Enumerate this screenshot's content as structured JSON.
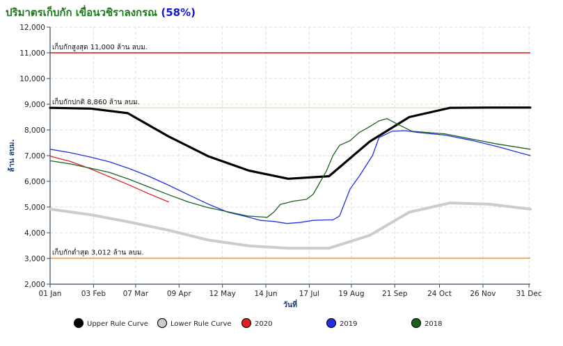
{
  "header": {
    "title_main": "ปริมาตรเก็บกัก เขื่อนวชิราลงกรณ",
    "title_pct": "(58%)"
  },
  "chart_data": {
    "type": "line",
    "xlabel": "วันที่",
    "ylabel": "ล้าน ลบม.",
    "ylim": [
      2000,
      12000
    ],
    "xlim": [
      0,
      365
    ],
    "y_ticks": [
      2000,
      3000,
      4000,
      5000,
      6000,
      7000,
      8000,
      9000,
      10000,
      11000,
      12000
    ],
    "y_tick_labels": [
      "2,000",
      "3,000",
      "4,000",
      "5,000",
      "6,000",
      "7,000",
      "8,000",
      "9,000",
      "10,000",
      "11,000",
      "12,000"
    ],
    "x_ticks": [
      {
        "day": 0,
        "label": "01 Jan"
      },
      {
        "day": 33,
        "label": "03 Feb"
      },
      {
        "day": 65,
        "label": "07 Mar"
      },
      {
        "day": 98,
        "label": "09 Apr"
      },
      {
        "day": 131,
        "label": "12 May"
      },
      {
        "day": 164,
        "label": "14 Jun"
      },
      {
        "day": 197,
        "label": "17 Jul"
      },
      {
        "day": 229,
        "label": "19 Aug"
      },
      {
        "day": 262,
        "label": "21 Sep"
      },
      {
        "day": 296,
        "label": "24 Oct"
      },
      {
        "day": 329,
        "label": "26 Nov"
      },
      {
        "day": 364,
        "label": "31 Dec"
      }
    ],
    "grid": true,
    "legend_position": "bottom",
    "reference_lines": [
      {
        "label": "เก็บกักสูงสุด 11,000 ล้าน ลบม.",
        "value": 11000,
        "color": "#e01010"
      },
      {
        "label": "เก็บกักปกติ 8,860 ล้าน ลบม.",
        "value": 8860,
        "color": "#f2dcc4"
      },
      {
        "label": "เก็บกักต่ำสุด 3,012 ล้าน ลบม.",
        "value": 3012,
        "color": "#f0a020"
      }
    ],
    "series": [
      {
        "name": "Upper Rule Curve",
        "color": "#000000",
        "width": 3.2,
        "x": [
          0,
          31,
          59,
          90,
          120,
          151,
          181,
          212,
          243,
          273,
          304,
          334,
          365
        ],
        "y": [
          8860,
          8830,
          8650,
          7750,
          6980,
          6420,
          6100,
          6200,
          7550,
          8500,
          8860,
          8870,
          8870
        ]
      },
      {
        "name": "Lower Rule Curve",
        "color": "#cccccc",
        "width": 4,
        "x": [
          0,
          31,
          59,
          90,
          120,
          151,
          181,
          212,
          243,
          273,
          304,
          334,
          365
        ],
        "y": [
          4920,
          4700,
          4430,
          4100,
          3720,
          3490,
          3400,
          3400,
          3900,
          4800,
          5160,
          5110,
          4920
        ]
      },
      {
        "name": "2020",
        "color": "#e02020",
        "width": 1.3,
        "x": [
          0,
          15,
          30,
          45,
          60,
          75,
          90
        ],
        "y": [
          6980,
          6780,
          6500,
          6180,
          5860,
          5520,
          5200
        ]
      },
      {
        "name": "2019",
        "color": "#2030e0",
        "width": 1.3,
        "x": [
          0,
          15,
          30,
          45,
          60,
          75,
          90,
          105,
          120,
          135,
          150,
          160,
          170,
          180,
          190,
          200,
          210,
          215,
          220,
          228,
          235,
          245,
          250,
          260,
          270,
          280,
          300,
          320,
          340,
          365
        ],
        "y": [
          7250,
          7120,
          6950,
          6760,
          6500,
          6200,
          5850,
          5480,
          5120,
          4800,
          4620,
          4480,
          4440,
          4360,
          4400,
          4480,
          4500,
          4500,
          4650,
          5700,
          6200,
          7000,
          7700,
          7950,
          7970,
          7900,
          7800,
          7600,
          7350,
          7000
        ]
      },
      {
        "name": "2018",
        "color": "#1a6020",
        "width": 1.3,
        "x": [
          0,
          15,
          30,
          45,
          60,
          75,
          90,
          105,
          120,
          135,
          150,
          160,
          165,
          170,
          175,
          185,
          195,
          200,
          210,
          215,
          220,
          228,
          235,
          242,
          250,
          256,
          265,
          275,
          300,
          320,
          340,
          365
        ],
        "y": [
          6800,
          6680,
          6520,
          6350,
          6080,
          5780,
          5480,
          5200,
          4980,
          4820,
          4650,
          4620,
          4600,
          4800,
          5100,
          5230,
          5300,
          5500,
          6400,
          7000,
          7400,
          7580,
          7900,
          8100,
          8350,
          8440,
          8200,
          7950,
          7850,
          7650,
          7450,
          7250
        ]
      }
    ]
  }
}
